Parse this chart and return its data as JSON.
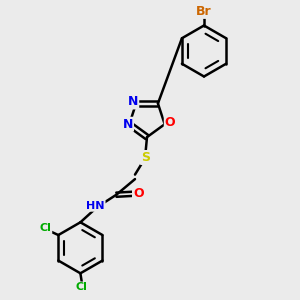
{
  "bg_color": "#ebebeb",
  "bond_color": "#000000",
  "bond_width": 1.8,
  "atom_colors": {
    "Br": "#cc6600",
    "O": "#ff0000",
    "N": "#0000ee",
    "S": "#cccc00",
    "Cl": "#00aa00",
    "H": "#000000",
    "C": "#000000"
  },
  "font_size": 9,
  "small_font_size": 8,
  "xlim": [
    0,
    10
  ],
  "ylim": [
    0,
    10
  ]
}
